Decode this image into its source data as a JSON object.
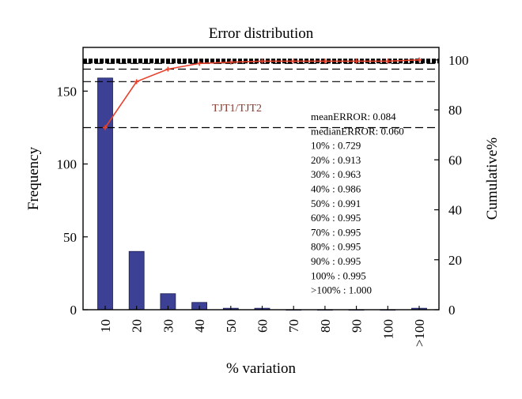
{
  "chart_data": {
    "type": "bar",
    "title": "Error distribution",
    "xlabel": "% variation",
    "ylabel": "Frequency",
    "y2label": "Cumulative%",
    "categories": [
      "10",
      "20",
      "30",
      "40",
      "50",
      "60",
      "70",
      "80",
      "90",
      "100",
      ">100"
    ],
    "ylim": [
      0,
      180
    ],
    "yticks": [
      0,
      50,
      100,
      150
    ],
    "y2lim": [
      0,
      105
    ],
    "y2ticks": [
      0,
      20,
      40,
      60,
      80,
      100
    ],
    "series": [
      {
        "values": [
          159,
          40,
          11,
          5,
          1,
          1,
          0,
          0,
          0,
          0,
          1
        ]
      },
      {
        "values": [
          72.9,
          91.3,
          96.3,
          98.6,
          99.1,
          99.5,
          99.5,
          99.5,
          99.5,
          99.5,
          100.0
        ]
      }
    ],
    "series_label": "TJT1/TJT2",
    "annotations": [
      "meanERROR: 0.084",
      "medianERROR: 0.060",
      "10% : 0.729",
      "20% : 0.913",
      "30% : 0.963",
      "40% : 0.986",
      "50% : 0.991",
      "60% : 0.995",
      "70% : 0.995",
      "80% : 0.995",
      "90% : 0.995",
      "100% : 0.995",
      ">100% : 1.000"
    ],
    "reference_lines_cumulative": [
      72.9,
      91.3,
      96.3,
      98.6,
      99.1,
      99.5,
      100.0
    ],
    "colors": {
      "bar_fill": "#3c4196",
      "bar_stroke": "#1c1f55",
      "cumulative_line": "#e8412c",
      "axes": "#000000",
      "series_label_text": "#8a3a30"
    }
  }
}
